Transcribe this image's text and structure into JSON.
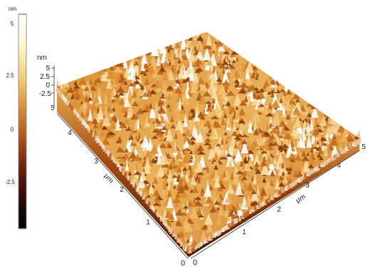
{
  "colorbar": {
    "unit": "nm",
    "ticks": [
      "5",
      "2.5",
      "0",
      "-2.5"
    ],
    "stops": [
      "#ffffff",
      "#fff7c8",
      "#f5d27a",
      "#d99135",
      "#b0561a",
      "#6b2208",
      "#2a0a02",
      "#000000"
    ]
  },
  "axis_z": {
    "unit": "nm",
    "ticks": [
      "5",
      "2.5",
      "0",
      "-2.5"
    ]
  },
  "axis_left": {
    "unit": "μm",
    "ticks": [
      "5",
      "4",
      "3",
      "2",
      "1",
      "0"
    ]
  },
  "axis_bottom": {
    "unit": "μm",
    "ticks": [
      "0",
      "1",
      "2",
      "3",
      "4",
      "5"
    ]
  },
  "surface_colors": {
    "base_dark": "#5a1e05",
    "mid": "#c8701f",
    "light": "#f0c070",
    "peak": "#ffffff"
  }
}
